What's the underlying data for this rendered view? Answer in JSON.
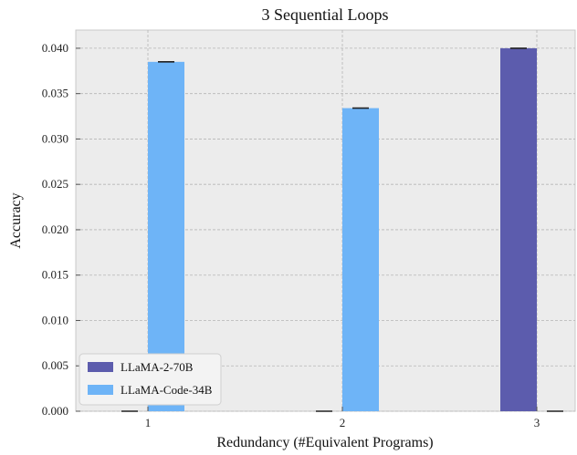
{
  "chart_data": {
    "type": "bar",
    "title": "3 Sequential Loops",
    "xlabel": "Redundancy (#Equivalent Programs)",
    "ylabel": "Accuracy",
    "categories": [
      "1",
      "2",
      "3"
    ],
    "ylim": [
      0,
      0.042
    ],
    "yticks": [
      "0.000",
      "0.005",
      "0.010",
      "0.015",
      "0.020",
      "0.025",
      "0.030",
      "0.035",
      "0.040"
    ],
    "grid": true,
    "legend_position": "lower-left",
    "series": [
      {
        "name": "LLaMA-2-70B",
        "color": "#5c5cad",
        "values": [
          0.0,
          0.0,
          0.04
        ]
      },
      {
        "name": "LLaMA-Code-34B",
        "color": "#6eb4f7",
        "values": [
          0.0385,
          0.0334,
          0.0
        ]
      }
    ]
  }
}
